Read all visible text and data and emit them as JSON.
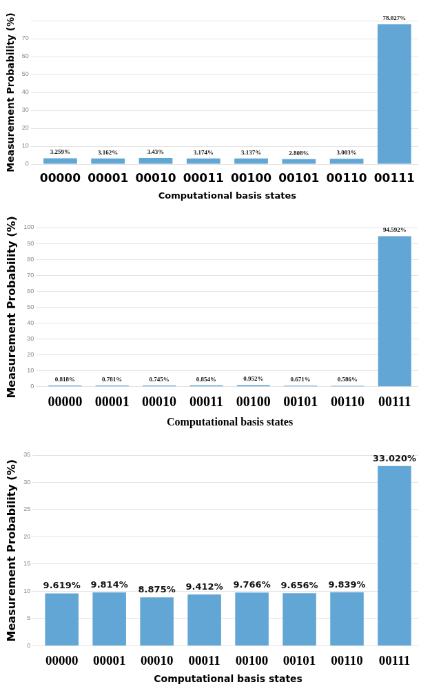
{
  "chart_data": [
    {
      "type": "bar",
      "xlabel": "Computational basis states",
      "ylabel": "Measurement Probability (%)",
      "categories": [
        "00000",
        "00001",
        "00010",
        "00011",
        "00100",
        "00101",
        "00110",
        "00111"
      ],
      "series": [
        {
          "color": "#62a6d6",
          "values": [
            3.259,
            3.162,
            3.43,
            3.174,
            3.137,
            2.808,
            3.003,
            78.027
          ]
        }
      ],
      "value_labels": [
        "3.259%",
        "3.162%",
        "3.43%",
        "3.174%",
        "3.137%",
        "2.808%",
        "3.003%",
        "78.027%"
      ],
      "ylim": [
        0,
        80
      ],
      "yticks": [
        0,
        10,
        20,
        30,
        40,
        50,
        60,
        70,
        {
          "value": 80,
          "label": null
        }
      ],
      "grid": "y"
    },
    {
      "type": "bar",
      "xlabel": "Computational basis states",
      "ylabel": "Measurement Probability (%)",
      "categories": [
        "00000",
        "00001",
        "00010",
        "00011",
        "00100",
        "00101",
        "00110",
        "00111"
      ],
      "series": [
        {
          "color": "#62a6d6",
          "values": [
            0.818,
            0.781,
            0.745,
            0.854,
            0.952,
            0.671,
            0.586,
            94.592
          ]
        }
      ],
      "value_labels": [
        "0.818%",
        "0.781%",
        "0.745%",
        "0.854%",
        "0.952%",
        "0.671%",
        "0.586%",
        "94.592%"
      ],
      "ylim": [
        0,
        100
      ],
      "yticks": [
        0,
        10,
        20,
        30,
        40,
        50,
        60,
        70,
        80,
        90,
        100
      ],
      "grid": "y"
    },
    {
      "type": "bar",
      "xlabel": "Computational basis states",
      "ylabel": "Measurement Probability (%)",
      "categories": [
        "00000",
        "00001",
        "00010",
        "00011",
        "00100",
        "00101",
        "00110",
        "00111"
      ],
      "series": [
        {
          "color": "#62a6d6",
          "values": [
            9.619,
            9.814,
            8.875,
            9.412,
            9.766,
            9.656,
            9.839,
            33.02
          ]
        }
      ],
      "value_labels": [
        "9.619%",
        "9.814%",
        "8.875%",
        "9.412%",
        "9.766%",
        "9.656%",
        "9.839%",
        "33.020%"
      ],
      "ylim": [
        0,
        35
      ],
      "yticks": [
        0,
        5,
        10,
        15,
        20,
        25,
        30,
        35
      ],
      "grid": "y"
    }
  ]
}
